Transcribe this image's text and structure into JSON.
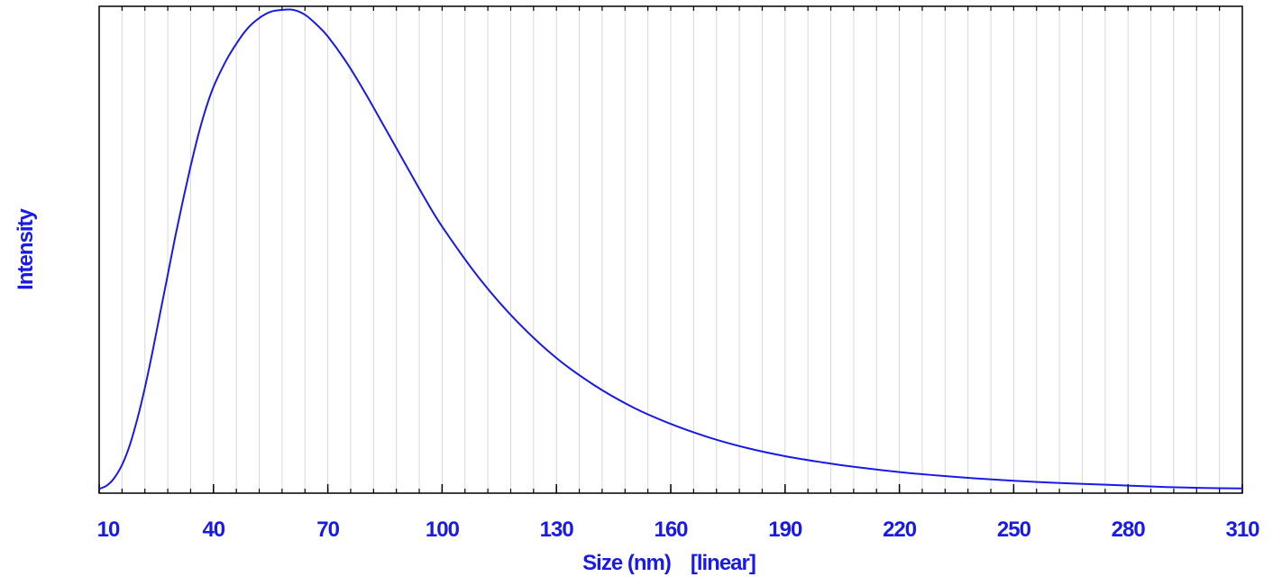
{
  "chart_data": {
    "type": "line",
    "title": "",
    "xlabel": "Size (nm)",
    "xscale_label": "[linear]",
    "ylabel": "Intensity",
    "xlim": [
      10,
      310
    ],
    "ylim": [
      0,
      1
    ],
    "x_ticks": [
      10,
      40,
      70,
      100,
      130,
      160,
      190,
      220,
      250,
      280,
      310
    ],
    "x_tick_labels": [
      "10",
      "40",
      "70",
      "100",
      "130",
      "160",
      "190",
      "220",
      "250",
      "280",
      "310"
    ],
    "minor_gridlines": true,
    "legend": "none",
    "color": "#1a1ae6",
    "series": [
      {
        "x": [
          10,
          12,
          14,
          16,
          18,
          20,
          22,
          24,
          26,
          28,
          30,
          32,
          34,
          36,
          38,
          40,
          43,
          46,
          49,
          52,
          55,
          58,
          61,
          64,
          67,
          70,
          75,
          80,
          85,
          90,
          95,
          100,
          110,
          120,
          130,
          140,
          150,
          160,
          170,
          180,
          190,
          200,
          210,
          220,
          230,
          240,
          250,
          260,
          270,
          280,
          290,
          300,
          310
        ],
        "values": [
          0.005,
          0.012,
          0.028,
          0.055,
          0.095,
          0.15,
          0.215,
          0.29,
          0.37,
          0.45,
          0.53,
          0.605,
          0.675,
          0.74,
          0.795,
          0.84,
          0.89,
          0.93,
          0.962,
          0.983,
          0.996,
          1.0,
          1.0,
          0.99,
          0.97,
          0.945,
          0.89,
          0.825,
          0.755,
          0.685,
          0.615,
          0.55,
          0.44,
          0.35,
          0.277,
          0.22,
          0.175,
          0.14,
          0.112,
          0.09,
          0.073,
          0.06,
          0.049,
          0.04,
          0.033,
          0.027,
          0.022,
          0.018,
          0.015,
          0.012,
          0.009,
          0.007,
          0.006
        ]
      }
    ]
  }
}
